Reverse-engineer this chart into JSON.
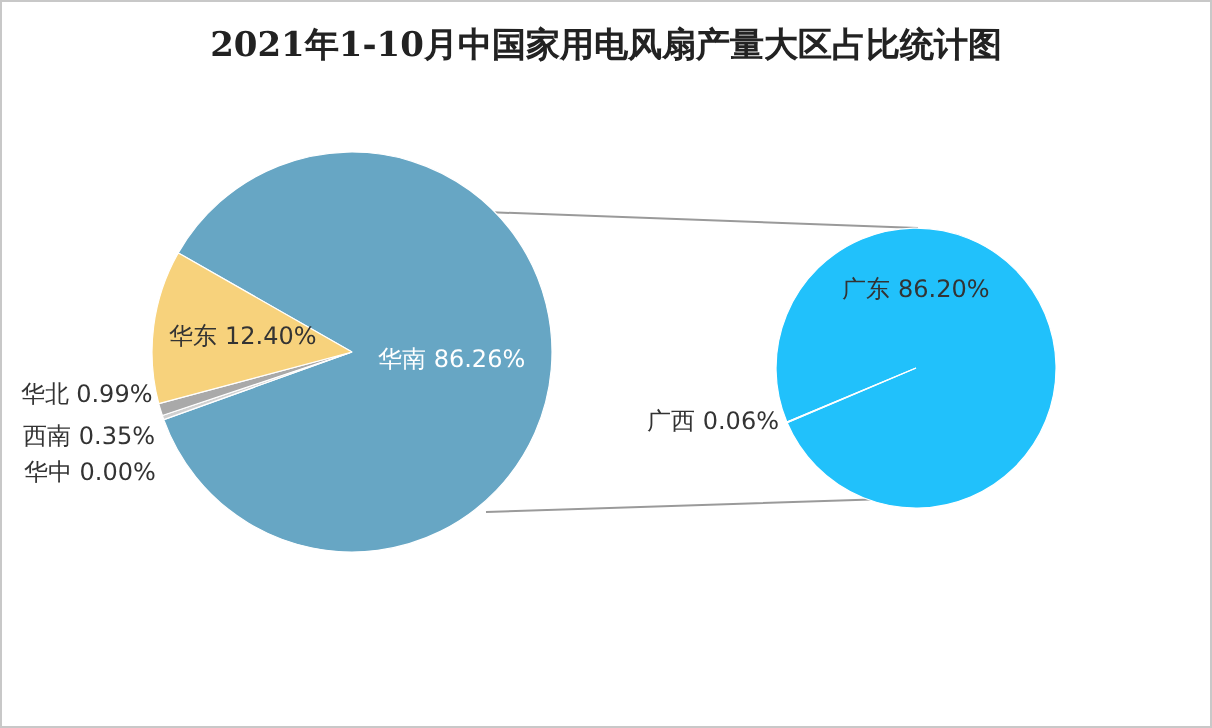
{
  "chart_data": [
    {
      "type": "pie",
      "title": "2021年1-10月中国家用电风扇产量大区占比统计图",
      "categories": [
        "华南",
        "华中",
        "西南",
        "华北",
        "华东"
      ],
      "values": [
        86.26,
        0.0,
        0.35,
        0.99,
        12.4
      ],
      "value_labels": [
        "86.26%",
        "0.00%",
        "0.35%",
        "0.99%",
        "12.40%"
      ],
      "colors": [
        "#67a6c4",
        "#ffffff",
        "#d0d0d0",
        "#a9a9a9",
        "#f7d27c"
      ]
    },
    {
      "type": "pie",
      "categories": [
        "广东",
        "广西"
      ],
      "values": [
        86.2,
        0.06
      ],
      "value_labels": [
        "86.20%",
        "0.06%"
      ],
      "colors": [
        "#21c1fb",
        "#ffffff"
      ]
    }
  ]
}
